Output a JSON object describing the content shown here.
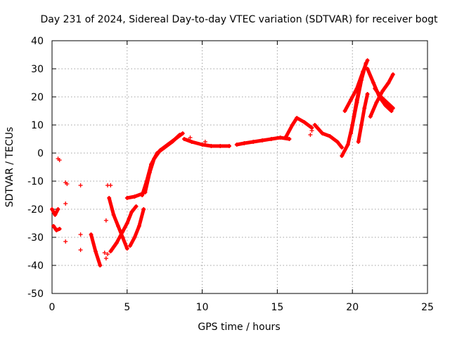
{
  "chart_data": {
    "type": "scatter",
    "title": "Day 231 of 2024, Sidereal Day-to-day VTEC variation (SDTVAR) for receiver bogt",
    "xlabel": "GPS time / hours",
    "ylabel": "SDTVAR / TECUs",
    "xlim": [
      0,
      25
    ],
    "ylim": [
      -50,
      40
    ],
    "xticks": [
      0,
      5,
      10,
      15,
      20,
      25
    ],
    "yticks": [
      -50,
      -40,
      -30,
      -20,
      -10,
      0,
      10,
      20,
      30,
      40
    ],
    "grid": true,
    "marker": "+",
    "color": "#ff0000",
    "series": [
      {
        "name": "track-1",
        "points": [
          [
            6.0,
            -15
          ],
          [
            6.3,
            -10
          ],
          [
            6.6,
            -4
          ],
          [
            7.0,
            0
          ],
          [
            7.5,
            2
          ],
          [
            8.0,
            4
          ],
          [
            8.5,
            6.5
          ]
        ]
      },
      {
        "name": "track-2",
        "points": [
          [
            6.2,
            -14
          ],
          [
            6.5,
            -7
          ],
          [
            6.8,
            -2
          ],
          [
            7.2,
            1
          ],
          [
            7.7,
            3
          ],
          [
            8.2,
            5
          ],
          [
            8.7,
            7
          ]
        ]
      },
      {
        "name": "track-3",
        "points": [
          [
            5.0,
            -16
          ],
          [
            5.5,
            -15.5
          ],
          [
            6.0,
            -14.5
          ]
        ]
      },
      {
        "name": "track-4",
        "points": [
          [
            3.8,
            -16
          ],
          [
            4.1,
            -22
          ],
          [
            4.4,
            -26
          ],
          [
            4.7,
            -30
          ],
          [
            5.0,
            -34
          ]
        ]
      },
      {
        "name": "track-5",
        "points": [
          [
            3.9,
            -35
          ],
          [
            4.3,
            -32
          ],
          [
            4.7,
            -28
          ],
          [
            5.0,
            -25
          ],
          [
            5.3,
            -21
          ],
          [
            5.6,
            -19
          ]
        ]
      },
      {
        "name": "track-6",
        "points": [
          [
            5.2,
            -33
          ],
          [
            5.5,
            -30
          ],
          [
            5.8,
            -26
          ],
          [
            6.1,
            -20
          ]
        ]
      },
      {
        "name": "track-7",
        "points": [
          [
            2.6,
            -29
          ],
          [
            2.9,
            -35
          ],
          [
            3.2,
            -40
          ]
        ]
      },
      {
        "name": "track-8",
        "points": [
          [
            0.0,
            -20
          ],
          [
            0.2,
            -22
          ],
          [
            0.4,
            -20
          ]
        ]
      },
      {
        "name": "track-9",
        "points": [
          [
            0.1,
            -26
          ],
          [
            0.3,
            -27.5
          ],
          [
            0.5,
            -27
          ]
        ]
      },
      {
        "name": "track-10",
        "points": [
          [
            8.8,
            5
          ],
          [
            9.3,
            4
          ],
          [
            10.0,
            3
          ],
          [
            10.6,
            2.5
          ],
          [
            11.2,
            2.5
          ],
          [
            11.8,
            2.5
          ]
        ]
      },
      {
        "name": "track-11",
        "points": [
          [
            12.3,
            3
          ],
          [
            12.8,
            3.5
          ],
          [
            13.4,
            4
          ],
          [
            14.0,
            4.5
          ],
          [
            14.6,
            5
          ],
          [
            15.2,
            5.5
          ],
          [
            15.8,
            5
          ]
        ]
      },
      {
        "name": "track-12",
        "points": [
          [
            15.6,
            6
          ],
          [
            16.0,
            10
          ],
          [
            16.3,
            12.5
          ],
          [
            16.8,
            11
          ],
          [
            17.3,
            9
          ]
        ]
      },
      {
        "name": "track-13",
        "points": [
          [
            17.5,
            10
          ],
          [
            18.0,
            7
          ],
          [
            18.5,
            6
          ],
          [
            19.0,
            4
          ],
          [
            19.3,
            2
          ]
        ]
      },
      {
        "name": "track-14",
        "points": [
          [
            19.3,
            -1
          ],
          [
            19.7,
            3
          ],
          [
            20.0,
            10
          ],
          [
            20.3,
            18
          ],
          [
            20.6,
            26
          ],
          [
            20.9,
            32
          ]
        ]
      },
      {
        "name": "track-15",
        "points": [
          [
            19.5,
            15
          ],
          [
            19.9,
            19
          ],
          [
            20.3,
            23
          ],
          [
            20.7,
            29
          ],
          [
            21.0,
            33
          ]
        ]
      },
      {
        "name": "track-16",
        "points": [
          [
            20.4,
            4
          ],
          [
            20.6,
            10
          ],
          [
            20.8,
            16
          ],
          [
            21.0,
            21
          ]
        ]
      },
      {
        "name": "track-17",
        "points": [
          [
            19.9,
            7
          ],
          [
            20.1,
            13
          ],
          [
            20.3,
            19
          ],
          [
            20.5,
            24
          ]
        ]
      },
      {
        "name": "track-18",
        "points": [
          [
            21.0,
            30
          ],
          [
            21.4,
            25
          ],
          [
            21.8,
            20
          ],
          [
            22.2,
            17
          ],
          [
            22.6,
            15
          ]
        ]
      },
      {
        "name": "track-19",
        "points": [
          [
            21.2,
            13
          ],
          [
            21.6,
            18
          ],
          [
            22.0,
            22
          ],
          [
            22.4,
            25
          ],
          [
            22.7,
            28
          ]
        ]
      },
      {
        "name": "track-20",
        "points": [
          [
            21.5,
            23
          ],
          [
            21.9,
            20
          ],
          [
            22.3,
            18
          ],
          [
            22.7,
            16
          ]
        ]
      }
    ],
    "scatter_points": [
      [
        0.4,
        -2
      ],
      [
        0.5,
        -2.5
      ],
      [
        0.9,
        -10.5
      ],
      [
        1.0,
        -11
      ],
      [
        0.9,
        -18
      ],
      [
        0.9,
        -31.5
      ],
      [
        1.9,
        -11.5
      ],
      [
        1.9,
        -29
      ],
      [
        1.9,
        -34.5
      ],
      [
        3.5,
        -35.5
      ],
      [
        3.6,
        -37.5
      ],
      [
        3.7,
        -11.5
      ],
      [
        3.9,
        -11.5
      ],
      [
        3.6,
        -24
      ],
      [
        3.7,
        -36
      ],
      [
        9.2,
        5.5
      ],
      [
        9.1,
        4.5
      ],
      [
        10.2,
        4
      ],
      [
        17.2,
        6.5
      ],
      [
        17.3,
        8
      ]
    ]
  }
}
